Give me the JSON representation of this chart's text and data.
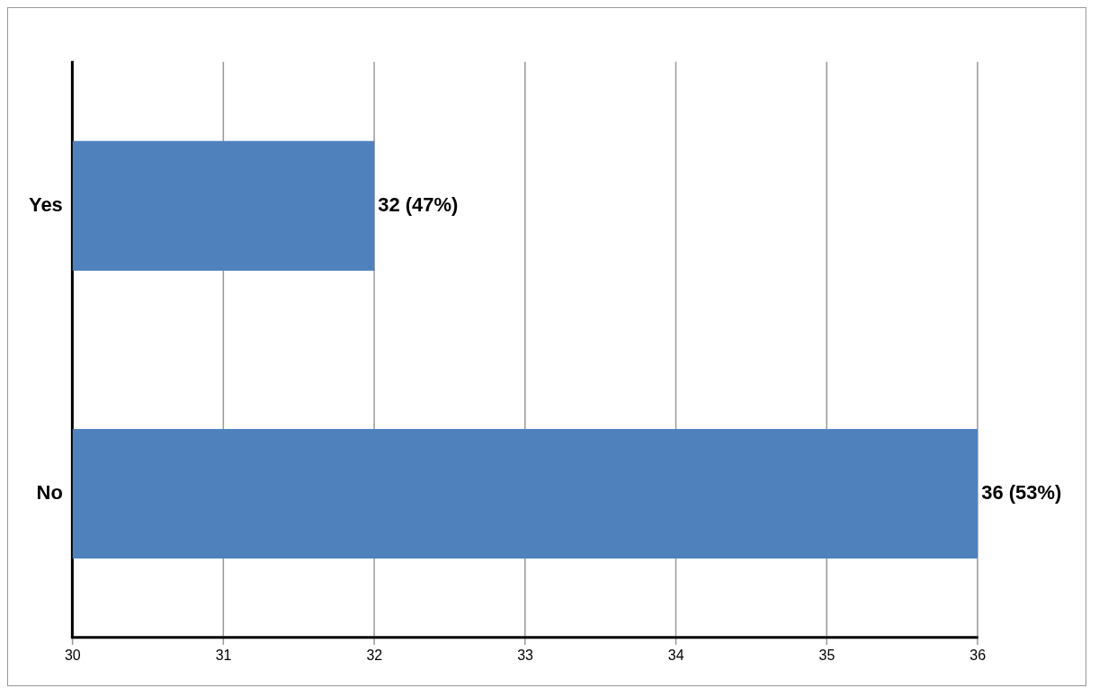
{
  "chart_data": {
    "type": "bar",
    "orientation": "horizontal",
    "categories": [
      "Yes",
      "No"
    ],
    "values": [
      32,
      36
    ],
    "color": "#4f81bd",
    "value_labels": [
      "32 (47%)",
      "36 (53%)"
    ],
    "xlim": [
      30,
      36
    ],
    "xticks": [
      30,
      31,
      32,
      33,
      34,
      35,
      36
    ],
    "grid": "x"
  }
}
